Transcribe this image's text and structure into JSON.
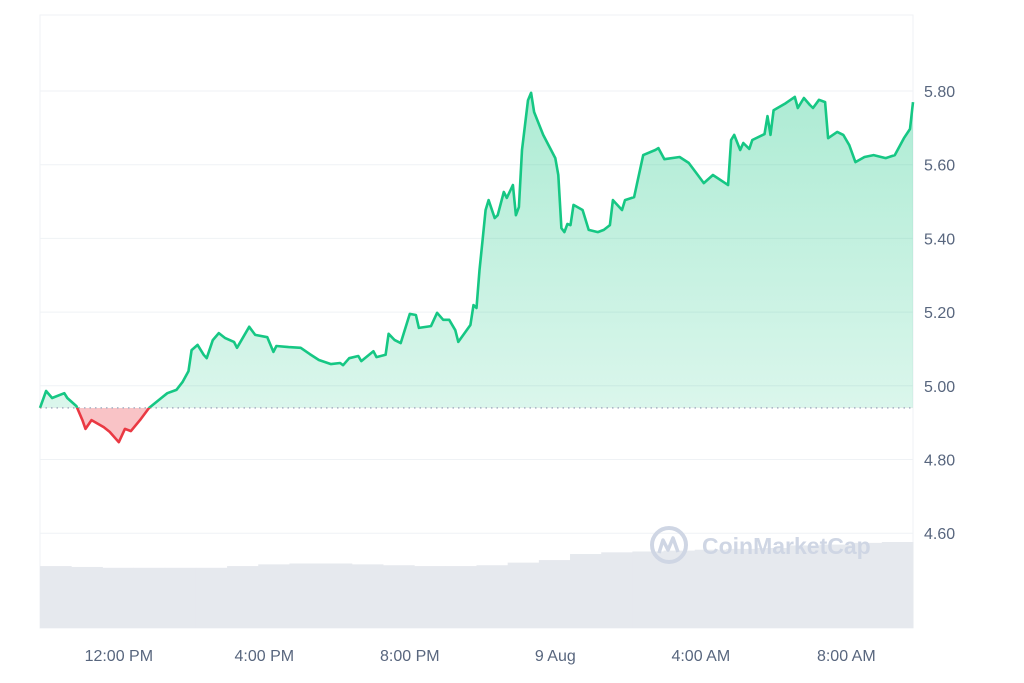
{
  "watermark": "CoinMarketCap",
  "colors": {
    "up": "#16c784",
    "down": "#ea3943",
    "grid": "#eff2f5",
    "volume": "#e6e9ee",
    "text": "#58667e",
    "baseline": "#a6b0c3"
  },
  "chart_data": {
    "type": "line",
    "title": "",
    "xlabel": "",
    "ylabel": "",
    "ylim": [
      4.37,
      5.99
    ],
    "yticks": [
      "5.80",
      "5.60",
      "5.40",
      "5.20",
      "5.00",
      "4.80",
      "4.60"
    ],
    "xticks": [
      {
        "label": "12:00 PM",
        "t": "8 Aug 12:00"
      },
      {
        "label": "4:00 PM",
        "t": "8 Aug 16:00"
      },
      {
        "label": "8:00 PM",
        "t": "8 Aug 20:00"
      },
      {
        "label": "9 Aug",
        "t": "9 Aug 00:00"
      },
      {
        "label": "4:00 AM",
        "t": "9 Aug 04:00"
      },
      {
        "label": "8:00 AM",
        "t": "9 Aug 08:00"
      }
    ],
    "xlim": [
      "8 Aug 09:50",
      "9 Aug 09:50"
    ],
    "baseline": 4.94,
    "grid": true,
    "legend": "none",
    "series": [
      {
        "points": [
          [
            "8 Aug 09:50",
            4.94
          ],
          [
            "8 Aug 10:00",
            4.986
          ],
          [
            "8 Aug 10:10",
            4.967
          ],
          [
            "8 Aug 10:30",
            4.98
          ],
          [
            "8 Aug 10:35",
            4.967
          ],
          [
            "8 Aug 10:50",
            4.945
          ],
          [
            "8 Aug 11:00",
            4.907
          ],
          [
            "8 Aug 11:05",
            4.883
          ],
          [
            "8 Aug 11:15",
            4.907
          ],
          [
            "8 Aug 11:35",
            4.888
          ],
          [
            "8 Aug 11:45",
            4.875
          ],
          [
            "8 Aug 12:00",
            4.847
          ],
          [
            "8 Aug 12:10",
            4.883
          ],
          [
            "8 Aug 12:20",
            4.877
          ],
          [
            "8 Aug 12:35",
            4.907
          ],
          [
            "8 Aug 12:50",
            4.94
          ],
          [
            "8 Aug 13:10",
            4.967
          ],
          [
            "8 Aug 13:20",
            4.98
          ],
          [
            "8 Aug 13:35",
            4.989
          ],
          [
            "8 Aug 13:45",
            5.01
          ],
          [
            "8 Aug 13:55",
            5.04
          ],
          [
            "8 Aug 14:00",
            5.097
          ],
          [
            "8 Aug 14:10",
            5.111
          ],
          [
            "8 Aug 14:20",
            5.084
          ],
          [
            "8 Aug 14:25",
            5.075
          ],
          [
            "8 Aug 14:35",
            5.124
          ],
          [
            "8 Aug 14:45",
            5.143
          ],
          [
            "8 Aug 14:55",
            5.13
          ],
          [
            "8 Aug 15:10",
            5.119
          ],
          [
            "8 Aug 15:15",
            5.103
          ],
          [
            "8 Aug 15:35",
            5.16
          ],
          [
            "8 Aug 15:45",
            5.138
          ],
          [
            "8 Aug 16:05",
            5.132
          ],
          [
            "8 Aug 16:15",
            5.092
          ],
          [
            "8 Aug 16:20",
            5.108
          ],
          [
            "8 Aug 16:40",
            5.105
          ],
          [
            "8 Aug 17:00",
            5.103
          ],
          [
            "8 Aug 17:15",
            5.086
          ],
          [
            "8 Aug 17:30",
            5.07
          ],
          [
            "8 Aug 17:50",
            5.059
          ],
          [
            "8 Aug 18:05",
            5.062
          ],
          [
            "8 Aug 18:10",
            5.056
          ],
          [
            "8 Aug 18:20",
            5.075
          ],
          [
            "8 Aug 18:35",
            5.081
          ],
          [
            "8 Aug 18:40",
            5.067
          ],
          [
            "8 Aug 19:00",
            5.094
          ],
          [
            "8 Aug 19:05",
            5.078
          ],
          [
            "8 Aug 19:20",
            5.084
          ],
          [
            "8 Aug 19:25",
            5.141
          ],
          [
            "8 Aug 19:35",
            5.124
          ],
          [
            "8 Aug 19:45",
            5.116
          ],
          [
            "8 Aug 19:50",
            5.143
          ],
          [
            "8 Aug 20:00",
            5.195
          ],
          [
            "8 Aug 20:10",
            5.192
          ],
          [
            "8 Aug 20:15",
            5.157
          ],
          [
            "8 Aug 20:35",
            5.162
          ],
          [
            "8 Aug 20:45",
            5.198
          ],
          [
            "8 Aug 20:55",
            5.179
          ],
          [
            "8 Aug 21:05",
            5.179
          ],
          [
            "8 Aug 21:15",
            5.151
          ],
          [
            "8 Aug 21:20",
            5.119
          ],
          [
            "8 Aug 21:40",
            5.165
          ],
          [
            "8 Aug 21:45",
            5.219
          ],
          [
            "8 Aug 21:50",
            5.211
          ],
          [
            "8 Aug 21:55",
            5.314
          ],
          [
            "8 Aug 22:00",
            5.396
          ],
          [
            "8 Aug 22:05",
            5.477
          ],
          [
            "8 Aug 22:10",
            5.504
          ],
          [
            "8 Aug 22:20",
            5.455
          ],
          [
            "8 Aug 22:25",
            5.463
          ],
          [
            "8 Aug 22:35",
            5.526
          ],
          [
            "8 Aug 22:40",
            5.51
          ],
          [
            "8 Aug 22:50",
            5.545
          ],
          [
            "8 Aug 22:55",
            5.463
          ],
          [
            "8 Aug 23:00",
            5.485
          ],
          [
            "8 Aug 23:05",
            5.64
          ],
          [
            "8 Aug 23:15",
            5.775
          ],
          [
            "8 Aug 23:20",
            5.795
          ],
          [
            "8 Aug 23:25",
            5.743
          ],
          [
            "8 Aug 23:40",
            5.681
          ],
          [
            "9 Aug 00:00",
            5.618
          ],
          [
            "9 Aug 00:05",
            5.572
          ],
          [
            "9 Aug 00:10",
            5.428
          ],
          [
            "9 Aug 00:15",
            5.417
          ],
          [
            "9 Aug 00:20",
            5.439
          ],
          [
            "9 Aug 00:25",
            5.436
          ],
          [
            "9 Aug 00:30",
            5.491
          ],
          [
            "9 Aug 00:45",
            5.477
          ],
          [
            "9 Aug 00:55",
            5.423
          ],
          [
            "9 Aug 01:10",
            5.417
          ],
          [
            "9 Aug 01:20",
            5.423
          ],
          [
            "9 Aug 01:30",
            5.436
          ],
          [
            "9 Aug 01:35",
            5.504
          ],
          [
            "9 Aug 01:50",
            5.477
          ],
          [
            "9 Aug 01:55",
            5.504
          ],
          [
            "9 Aug 02:10",
            5.512
          ],
          [
            "9 Aug 02:25",
            5.626
          ],
          [
            "9 Aug 02:45",
            5.64
          ],
          [
            "9 Aug 02:50",
            5.645
          ],
          [
            "9 Aug 03:00",
            5.615
          ],
          [
            "9 Aug 03:25",
            5.621
          ],
          [
            "9 Aug 03:40",
            5.605
          ],
          [
            "9 Aug 03:55",
            5.572
          ],
          [
            "9 Aug 04:05",
            5.55
          ],
          [
            "9 Aug 04:20",
            5.572
          ],
          [
            "9 Aug 04:40",
            5.55
          ],
          [
            "9 Aug 04:45",
            5.545
          ],
          [
            "9 Aug 04:50",
            5.667
          ],
          [
            "9 Aug 04:55",
            5.681
          ],
          [
            "9 Aug 05:05",
            5.64
          ],
          [
            "9 Aug 05:10",
            5.659
          ],
          [
            "9 Aug 05:20",
            5.643
          ],
          [
            "9 Aug 05:25",
            5.667
          ],
          [
            "9 Aug 05:45",
            5.683
          ],
          [
            "9 Aug 05:50",
            5.732
          ],
          [
            "9 Aug 05:55",
            5.681
          ],
          [
            "9 Aug 06:00",
            5.748
          ],
          [
            "9 Aug 06:20",
            5.767
          ],
          [
            "9 Aug 06:35",
            5.784
          ],
          [
            "9 Aug 06:40",
            5.754
          ],
          [
            "9 Aug 06:50",
            5.781
          ],
          [
            "9 Aug 07:00",
            5.762
          ],
          [
            "9 Aug 07:05",
            5.754
          ],
          [
            "9 Aug 07:15",
            5.776
          ],
          [
            "9 Aug 07:25",
            5.77
          ],
          [
            "9 Aug 07:30",
            5.672
          ],
          [
            "9 Aug 07:45",
            5.689
          ],
          [
            "9 Aug 07:55",
            5.681
          ],
          [
            "9 Aug 08:05",
            5.653
          ],
          [
            "9 Aug 08:15",
            5.607
          ],
          [
            "9 Aug 08:30",
            5.621
          ],
          [
            "9 Aug 08:45",
            5.626
          ],
          [
            "9 Aug 09:05",
            5.618
          ],
          [
            "9 Aug 09:20",
            5.626
          ],
          [
            "9 Aug 09:35",
            5.672
          ],
          [
            "9 Aug 09:45",
            5.697
          ],
          [
            "9 Aug 09:50",
            5.77
          ]
        ]
      }
    ],
    "volume_relative": [
      0.72,
      0.71,
      0.7,
      0.7,
      0.7,
      0.7,
      0.72,
      0.74,
      0.75,
      0.75,
      0.74,
      0.73,
      0.72,
      0.72,
      0.73,
      0.76,
      0.79,
      0.86,
      0.88,
      0.89,
      0.9,
      0.91,
      0.92,
      0.93,
      0.96,
      0.97,
      0.99,
      1.0
    ]
  }
}
